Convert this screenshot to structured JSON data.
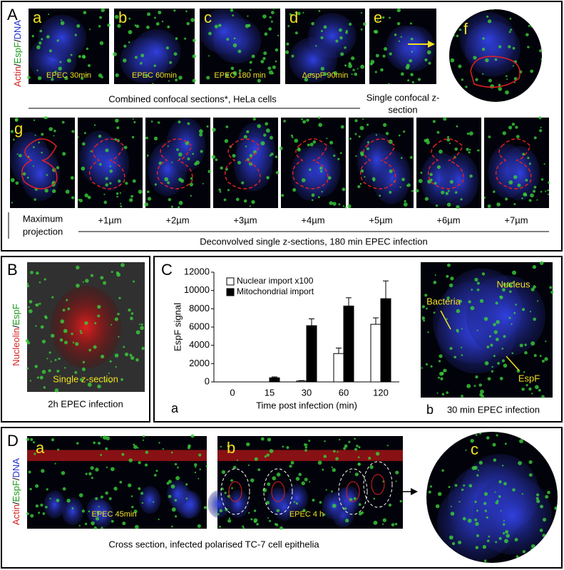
{
  "panel_a": {
    "label": "A",
    "channels": [
      {
        "text": "Actin",
        "color": "#d42020"
      },
      {
        "text": "/"
      },
      {
        "text": "EspF",
        "color": "#1a9a1a"
      },
      {
        "text": "/"
      },
      {
        "text": "DNA",
        "color": "#2030d0"
      }
    ],
    "images": [
      {
        "letter": "a",
        "caption": "EPEC 30min"
      },
      {
        "letter": "b",
        "caption": "EPEC 60min"
      },
      {
        "letter": "c",
        "caption": "EPEC 180 min"
      },
      {
        "letter": "d",
        "caption": "ΔespF 90min"
      },
      {
        "letter": "e"
      },
      {
        "letter": "f"
      }
    ],
    "caption_combined": "Combined confocal sections*, HeLa cells",
    "caption_single": [
      "Single confocal z-",
      "section"
    ],
    "g_letter": "g",
    "g_labels": [
      "Maximum",
      "projection"
    ],
    "z_steps": [
      "+1µm",
      "+2µm",
      "+3µm",
      "+4µm",
      "+5µm",
      "+6µm",
      "+7µm"
    ],
    "g_caption": "Deconvolved single z-sections, 180 min EPEC infection"
  },
  "panel_b": {
    "label": "B",
    "channels": [
      {
        "text": "Nucleolin",
        "color": "#d42020"
      },
      {
        "text": "/"
      },
      {
        "text": "EspF",
        "color": "#1a9a1a"
      }
    ],
    "inset": "Single z-section",
    "caption": "2h EPEC infection"
  },
  "panel_c": {
    "label": "C",
    "sub_a": "a",
    "sub_b": "b",
    "nucleus": "Nucleus",
    "bacteria": "Bacteria",
    "espf": "EspF",
    "caption_b": "30 min EPEC infection"
  },
  "chart_data": {
    "type": "bar",
    "ylabel": "EspF signal",
    "xlabel": "Time post infection (min)",
    "categories": [
      "0",
      "15",
      "30",
      "60",
      "120"
    ],
    "series": [
      {
        "name": "Nuclear import x100",
        "color": "#ffffff",
        "values": [
          0,
          0,
          100,
          3100,
          6300
        ],
        "errors": [
          0,
          0,
          50,
          600,
          700
        ]
      },
      {
        "name": "Mitochondrial import",
        "color": "#000000",
        "values": [
          0,
          450,
          6150,
          8300,
          9100
        ],
        "errors": [
          0,
          100,
          750,
          900,
          1950
        ]
      }
    ],
    "ylim": [
      0,
      12000
    ],
    "yticks": [
      0,
      2000,
      4000,
      6000,
      8000,
      10000,
      12000
    ]
  },
  "panel_d": {
    "label": "D",
    "channels": [
      {
        "text": "Actin",
        "color": "#d42020"
      },
      {
        "text": "/"
      },
      {
        "text": "EspF",
        "color": "#1a9a1a"
      },
      {
        "text": "/"
      },
      {
        "text": "DNA",
        "color": "#2030d0"
      }
    ],
    "images": [
      {
        "letter": "a",
        "caption": "EPEC 45min"
      },
      {
        "letter": "b",
        "caption": "EPEC 4 h"
      },
      {
        "letter": "c"
      }
    ],
    "caption": "Cross section,  infected polarised TC-7 cell epithelia"
  }
}
